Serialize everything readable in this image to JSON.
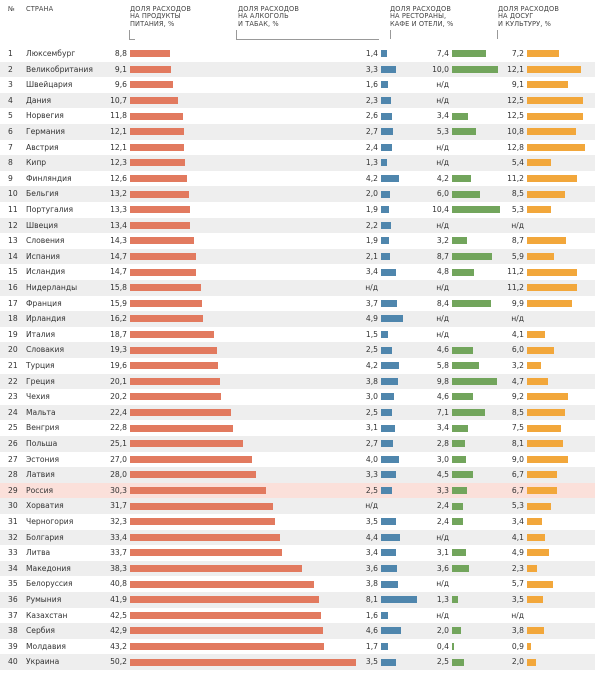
{
  "header": {
    "num": "№",
    "country": "СТРАНА",
    "food": "ДОЛЯ РАСХОДОВ\nНА ПРОДУКТЫ\nПИТАНИЯ, %",
    "alcohol": "ДОЛЯ РАСХОДОВ\nНА АЛКОГОЛЬ\nИ ТАБАК, %",
    "restaurants": "ДОЛЯ РАСХОДОВ\nНА РЕСТОРАНЫ,\nКАФЕ И ОТЕЛИ, %",
    "leisure": "ДОЛЯ РАСХОДОВ\nНА ДОСУГ\nИ КУЛЬТУРУ, %"
  },
  "na_label": "н/д",
  "colors": {
    "food": "#e27a5f",
    "alcohol": "#4f86ad",
    "restaurants": "#72a55c",
    "leisure": "#f2a73b",
    "highlight_row": "#fbe0da",
    "alt_row": "#eeeeee"
  },
  "chart_data": {
    "type": "table",
    "highlight": "Россия",
    "columns": [
      "№",
      "СТРАНА",
      "ДОЛЯ РАСХОДОВ НА ПРОДУКТЫ ПИТАНИЯ, %",
      "ДОЛЯ РАСХОДОВ НА АЛКОГОЛЬ И ТАБАК, %",
      "ДОЛЯ РАСХОДОВ НА РЕСТОРАНЫ, КАФЕ И ОТЕЛИ, %",
      "ДОЛЯ РАСХОДОВ НА ДОСУГ И КУЛЬТУРУ, %"
    ],
    "rows": [
      {
        "n": "1",
        "country": "Люксембург",
        "food": 8.8,
        "alcohol": 1.4,
        "restaurants": 7.4,
        "leisure": 7.2
      },
      {
        "n": "2",
        "country": "Великобритания",
        "food": 9.1,
        "alcohol": 3.3,
        "restaurants": 10.0,
        "leisure": 12.1
      },
      {
        "n": "3",
        "country": "Швейцария",
        "food": 9.6,
        "alcohol": 1.6,
        "restaurants": null,
        "leisure": 9.1
      },
      {
        "n": "4",
        "country": "Дания",
        "food": 10.7,
        "alcohol": 2.3,
        "restaurants": null,
        "leisure": 12.5
      },
      {
        "n": "5",
        "country": "Норвегия",
        "food": 11.8,
        "alcohol": 2.6,
        "restaurants": 3.4,
        "leisure": 12.5
      },
      {
        "n": "6",
        "country": "Германия",
        "food": 12.1,
        "alcohol": 2.7,
        "restaurants": 5.3,
        "leisure": 10.8
      },
      {
        "n": "7",
        "country": "Австрия",
        "food": 12.1,
        "alcohol": 2.4,
        "restaurants": null,
        "leisure": 12.8
      },
      {
        "n": "8",
        "country": "Кипр",
        "food": 12.3,
        "alcohol": 1.3,
        "restaurants": null,
        "leisure": 5.4
      },
      {
        "n": "9",
        "country": "Финляндия",
        "food": 12.6,
        "alcohol": 4.2,
        "restaurants": 4.2,
        "leisure": 11.2
      },
      {
        "n": "10",
        "country": "Бельгия",
        "food": 13.2,
        "alcohol": 2.0,
        "restaurants": 6.0,
        "leisure": 8.5
      },
      {
        "n": "11",
        "country": "Португалия",
        "food": 13.3,
        "alcohol": 1.9,
        "restaurants": 10.4,
        "leisure": 5.3
      },
      {
        "n": "12",
        "country": "Швеция",
        "food": 13.4,
        "alcohol": 2.2,
        "restaurants": null,
        "leisure": null
      },
      {
        "n": "13",
        "country": "Словения",
        "food": 14.3,
        "alcohol": 1.9,
        "restaurants": 3.2,
        "leisure": 8.7
      },
      {
        "n": "14",
        "country": "Испания",
        "food": 14.7,
        "alcohol": 2.1,
        "restaurants": 8.7,
        "leisure": 5.9
      },
      {
        "n": "15",
        "country": "Исландия",
        "food": 14.7,
        "alcohol": 3.4,
        "restaurants": 4.8,
        "leisure": 11.2
      },
      {
        "n": "16",
        "country": "Нидерланды",
        "food": 15.8,
        "alcohol": null,
        "restaurants": null,
        "leisure": 11.2
      },
      {
        "n": "17",
        "country": "Франция",
        "food": 15.9,
        "alcohol": 3.7,
        "restaurants": 8.4,
        "leisure": 9.9
      },
      {
        "n": "18",
        "country": "Ирландия",
        "food": 16.2,
        "alcohol": 4.9,
        "restaurants": null,
        "leisure": null
      },
      {
        "n": "19",
        "country": "Италия",
        "food": 18.7,
        "alcohol": 1.5,
        "restaurants": null,
        "leisure": 4.1
      },
      {
        "n": "20",
        "country": "Словакия",
        "food": 19.3,
        "alcohol": 2.5,
        "restaurants": 4.6,
        "leisure": 6.0
      },
      {
        "n": "21",
        "country": "Турция",
        "food": 19.6,
        "alcohol": 4.2,
        "restaurants": 5.8,
        "leisure": 3.2
      },
      {
        "n": "22",
        "country": "Греция",
        "food": 20.1,
        "alcohol": 3.8,
        "restaurants": 9.8,
        "leisure": 4.7
      },
      {
        "n": "23",
        "country": "Чехия",
        "food": 20.2,
        "alcohol": 3.0,
        "restaurants": 4.6,
        "leisure": 9.2
      },
      {
        "n": "24",
        "country": "Мальта",
        "food": 22.4,
        "alcohol": 2.5,
        "restaurants": 7.1,
        "leisure": 8.5
      },
      {
        "n": "25",
        "country": "Венгрия",
        "food": 22.8,
        "alcohol": 3.1,
        "restaurants": 3.4,
        "leisure": 7.5
      },
      {
        "n": "26",
        "country": "Польша",
        "food": 25.1,
        "alcohol": 2.7,
        "restaurants": 2.8,
        "leisure": 8.1
      },
      {
        "n": "27",
        "country": "Эстония",
        "food": 27.0,
        "alcohol": 4.0,
        "restaurants": 3.0,
        "leisure": 9.0
      },
      {
        "n": "28",
        "country": "Латвия",
        "food": 28.0,
        "alcohol": 3.3,
        "restaurants": 4.5,
        "leisure": 6.7
      },
      {
        "n": "29",
        "country": "Россия",
        "food": 30.3,
        "alcohol": 2.5,
        "restaurants": 3.3,
        "leisure": 6.7
      },
      {
        "n": "30",
        "country": "Хорватия",
        "food": 31.7,
        "alcohol": null,
        "restaurants": 2.4,
        "leisure": 5.3
      },
      {
        "n": "31",
        "country": "Черногория",
        "food": 32.3,
        "alcohol": 3.5,
        "restaurants": 2.4,
        "leisure": 3.4
      },
      {
        "n": "32",
        "country": "Болгария",
        "food": 33.4,
        "alcohol": 4.4,
        "restaurants": null,
        "leisure": 4.1
      },
      {
        "n": "33",
        "country": "Литва",
        "food": 33.7,
        "alcohol": 3.4,
        "restaurants": 3.1,
        "leisure": 4.9
      },
      {
        "n": "34",
        "country": "Македония",
        "food": 38.3,
        "alcohol": 3.6,
        "restaurants": 3.6,
        "leisure": 2.3
      },
      {
        "n": "35",
        "country": "Белоруссия",
        "food": 40.8,
        "alcohol": 3.8,
        "restaurants": null,
        "leisure": 5.7
      },
      {
        "n": "36",
        "country": "Румыния",
        "food": 41.9,
        "alcohol": 8.1,
        "restaurants": 1.3,
        "leisure": 3.5
      },
      {
        "n": "37",
        "country": "Казахстан",
        "food": 42.5,
        "alcohol": 1.6,
        "restaurants": null,
        "leisure": null
      },
      {
        "n": "38",
        "country": "Сербия",
        "food": 42.9,
        "alcohol": 4.6,
        "restaurants": 2.0,
        "leisure": 3.8
      },
      {
        "n": "39",
        "country": "Молдавия",
        "food": 43.2,
        "alcohol": 1.7,
        "restaurants": 0.4,
        "leisure": 0.9
      },
      {
        "n": "40",
        "country": "Украина",
        "food": 50.2,
        "alcohol": 3.5,
        "restaurants": 2.5,
        "leisure": 2.0
      }
    ]
  }
}
